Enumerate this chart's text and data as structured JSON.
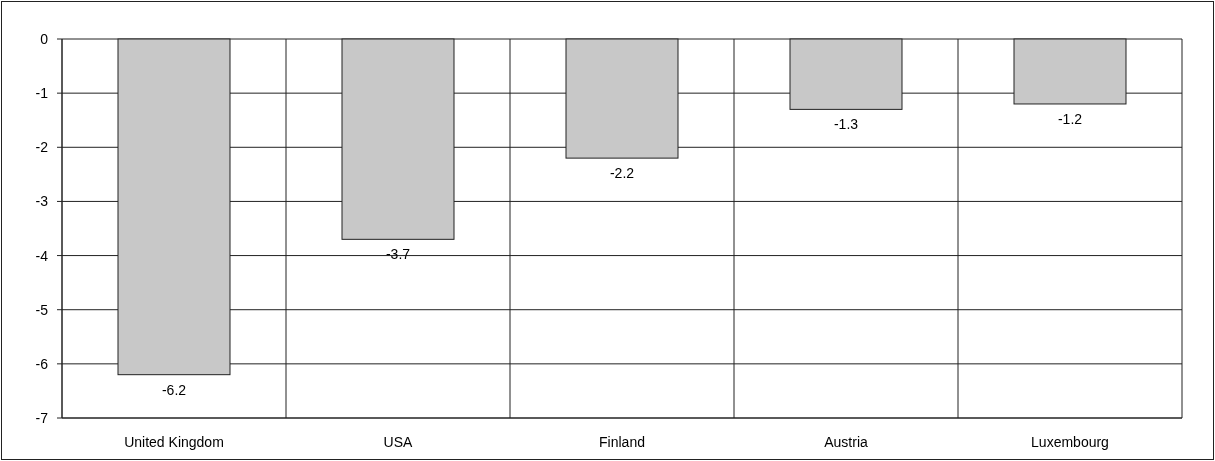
{
  "chart_data": {
    "type": "bar",
    "categories": [
      "United Kingdom",
      "USA",
      "Finland",
      "Austria",
      "Luxembourg"
    ],
    "values": [
      -6.2,
      -3.7,
      -2.2,
      -1.3,
      -1.2
    ],
    "color": "#c8c8c8",
    "ylim": [
      -7,
      0
    ],
    "yticks": [
      -7,
      -6,
      -5,
      -4,
      -3,
      -2,
      -1,
      0
    ],
    "grid": true,
    "data_labels": true
  }
}
